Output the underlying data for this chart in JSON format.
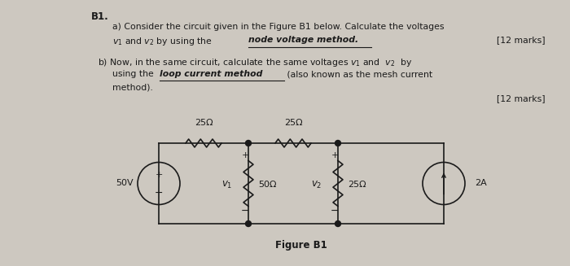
{
  "bg_color": "#cdc8c0",
  "text_color": "#1a1a1a",
  "title": "B1.",
  "fig_width": 7.0,
  "fig_height": 3.27,
  "dpi": 100,
  "figure_label": "Figure B1",
  "resistor_labels": [
    "25Ω",
    "25Ω",
    "50Ω",
    "25Ω"
  ],
  "source_labels": [
    "50V",
    "2A"
  ]
}
